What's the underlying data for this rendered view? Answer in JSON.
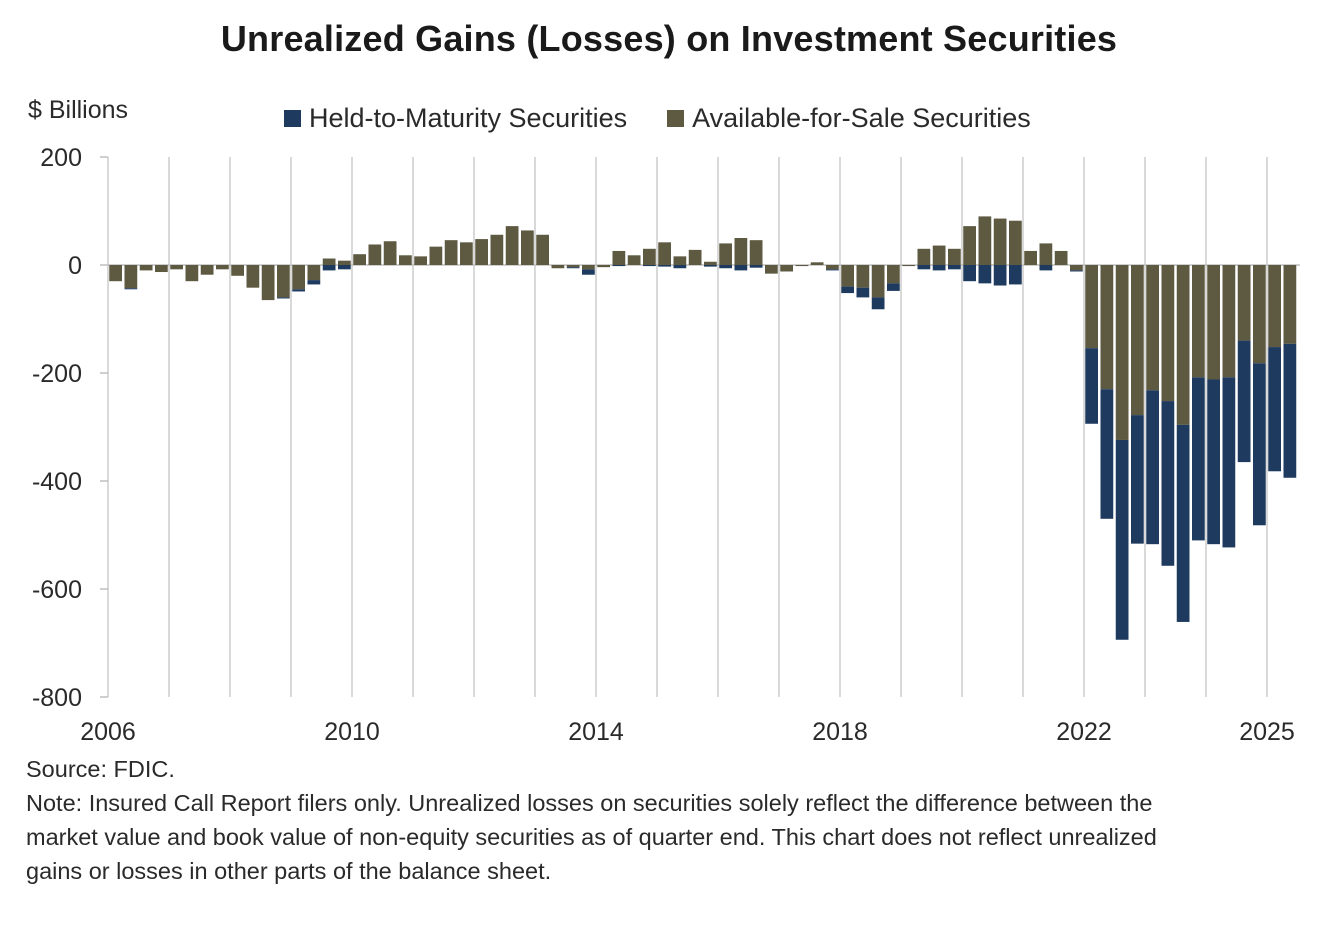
{
  "chart_data": {
    "type": "bar",
    "stacked": true,
    "title": "Unrealized Gains (Losses) on Investment Securities",
    "ylabel": "$ Billions",
    "xlabel": "",
    "ylim": [
      -800,
      200
    ],
    "yticks": [
      200,
      0,
      -200,
      -400,
      -600,
      -800
    ],
    "xticks": [
      {
        "label": "2006",
        "index": 0
      },
      {
        "label": "2010",
        "index": 16
      },
      {
        "label": "2014",
        "index": 32
      },
      {
        "label": "2018",
        "index": 48
      },
      {
        "label": "2022",
        "index": 64
      },
      {
        "label": "2025",
        "index": 76
      }
    ],
    "grid": "vertical-yearly",
    "legend_position": "top",
    "frequency": "quarterly",
    "period_start": "2006Q1",
    "period_end": "2025Q2",
    "series": [
      {
        "name": "Held-to-Maturity Securities",
        "color": "#1f3a5f",
        "values": [
          0,
          -2,
          0,
          0,
          0,
          0,
          0,
          0,
          0,
          0,
          0,
          -2,
          -4,
          -8,
          -10,
          -8,
          0,
          0,
          0,
          0,
          0,
          0,
          0,
          0,
          0,
          0,
          0,
          0,
          0,
          0,
          -2,
          -10,
          0,
          -2,
          0,
          -2,
          -3,
          -6,
          0,
          -3,
          -6,
          -10,
          -5,
          0,
          0,
          0,
          0,
          -2,
          -12,
          -18,
          -22,
          -14,
          0,
          -8,
          -10,
          -8,
          -30,
          -34,
          -38,
          -36,
          0,
          -10,
          0,
          -2,
          -140,
          -240,
          -370,
          -238,
          -285,
          -305,
          -365,
          -302,
          -305,
          -315,
          -225,
          -300,
          -230,
          -248
        ]
      },
      {
        "name": "Available-for-Sale Securities",
        "color": "#5e5a42",
        "values": [
          -30,
          -43,
          -10,
          -13,
          -8,
          -30,
          -18,
          -8,
          -20,
          -42,
          -65,
          -60,
          -45,
          -28,
          12,
          8,
          20,
          38,
          44,
          18,
          16,
          34,
          46,
          42,
          48,
          56,
          72,
          64,
          56,
          -6,
          -4,
          -8,
          -4,
          26,
          18,
          30,
          42,
          16,
          28,
          6,
          40,
          50,
          46,
          -16,
          -12,
          -2,
          5,
          -8,
          -40,
          -42,
          -60,
          -34,
          -2,
          30,
          36,
          30,
          72,
          90,
          86,
          82,
          26,
          40,
          26,
          -10,
          -154,
          -230,
          -324,
          -278,
          -232,
          -252,
          -296,
          -208,
          -212,
          -208,
          -140,
          -182,
          -152,
          -146
        ]
      }
    ]
  },
  "header": {
    "title": "Unrealized Gains (Losses) on Investment Securities",
    "unit_label": "$ Billions"
  },
  "legend": [
    {
      "label": "Held-to-Maturity Securities",
      "color": "#1f3a5f"
    },
    {
      "label": "Available-for-Sale Securities",
      "color": "#5e5a42"
    }
  ],
  "footer": {
    "source": "Source: FDIC.",
    "note_lines": [
      "Note: Insured Call Report filers only. Unrealized losses on securities solely reflect the difference between the",
      "market value and book value of non-equity securities as of quarter end. This chart does not reflect unrealized",
      "gains or losses in other parts of the balance sheet."
    ]
  }
}
